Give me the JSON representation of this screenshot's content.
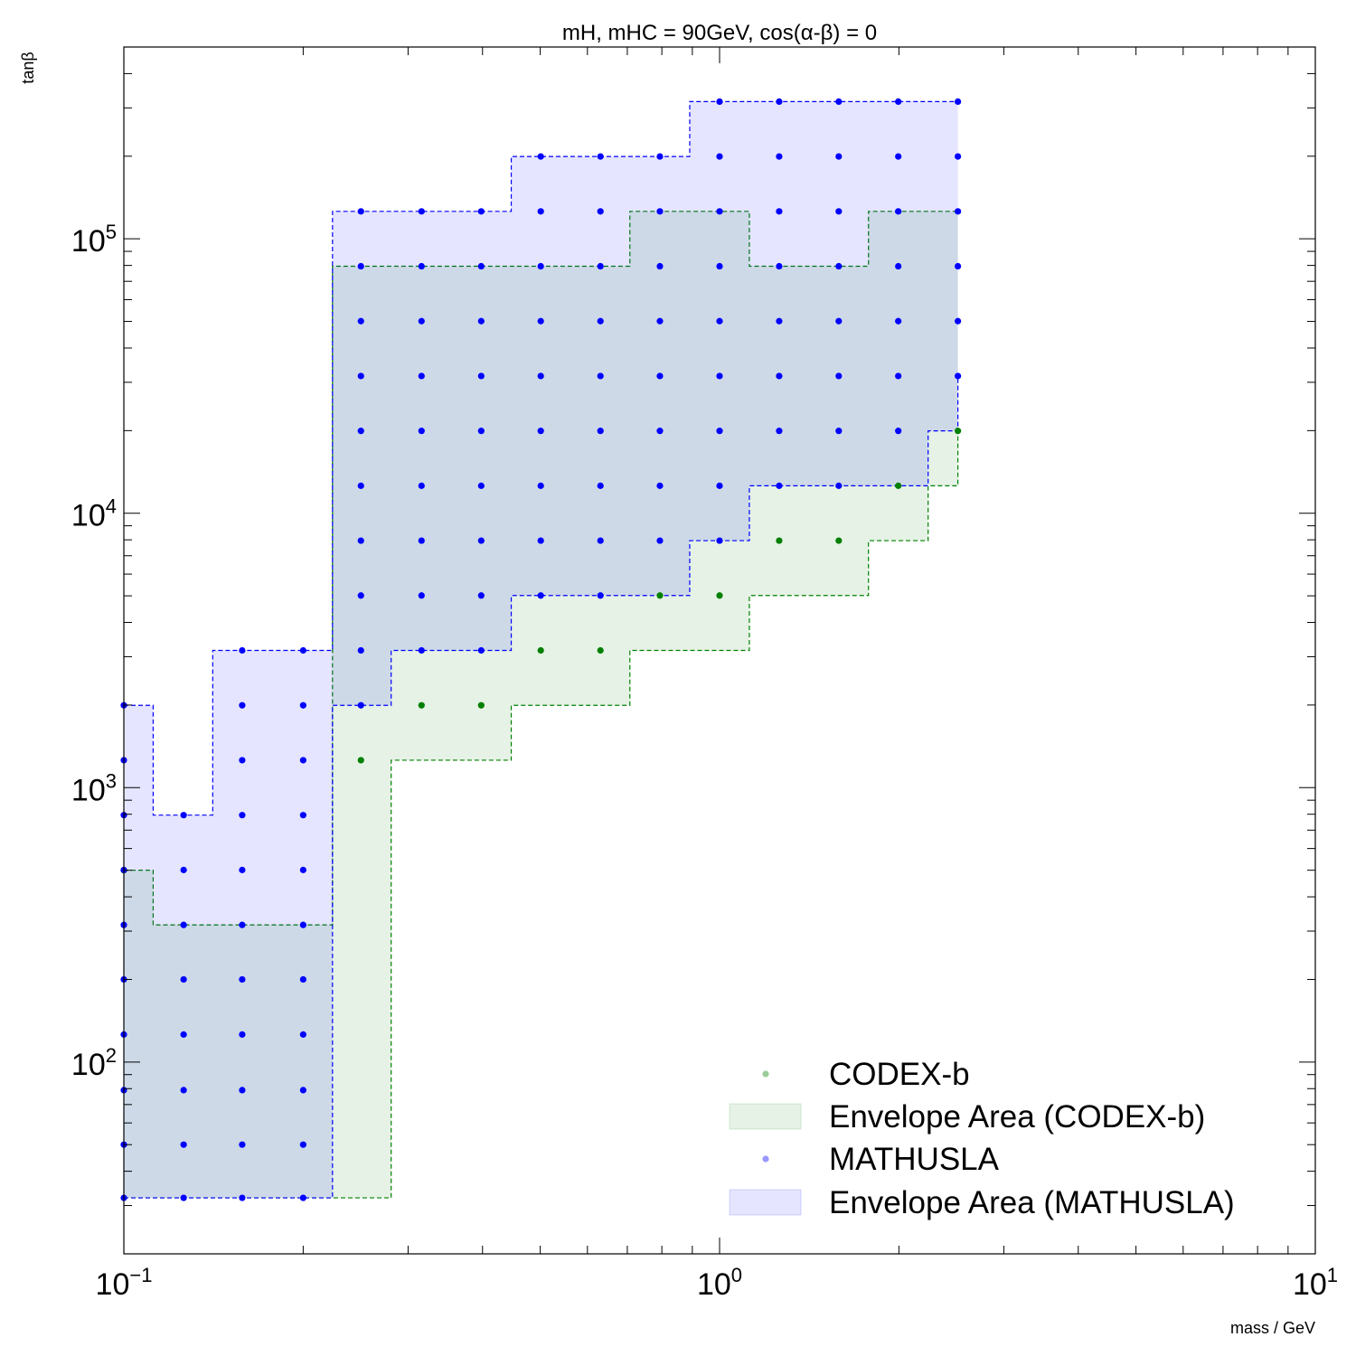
{
  "chart_data": {
    "type": "scatter",
    "title": "mH, mHC = 90GeV, cos(α-β) = 0",
    "xlabel": "mass / GeV",
    "ylabel": "tanβ",
    "x_scale": "log",
    "y_scale": "log",
    "xlim": [
      0.1,
      10
    ],
    "ylim": [
      20,
      500000
    ],
    "x_tick_labels": [
      {
        "value": 0.1,
        "base": "10",
        "exp": "−1"
      },
      {
        "value": 1,
        "base": "10",
        "exp": "0"
      },
      {
        "value": 10,
        "base": "10",
        "exp": "1"
      }
    ],
    "y_tick_labels": [
      {
        "value": 100,
        "base": "10",
        "exp": "2"
      },
      {
        "value": 1000,
        "base": "10",
        "exp": "3"
      },
      {
        "value": 10000,
        "base": "10",
        "exp": "4"
      },
      {
        "value": 100000,
        "base": "10",
        "exp": "5"
      }
    ],
    "legend_position": "lower-right",
    "legend": [
      {
        "label": "CODEX-b",
        "kind": "marker",
        "color": "#008000"
      },
      {
        "label": "Envelope Area (CODEX-b)",
        "kind": "patch",
        "color": "#008000"
      },
      {
        "label": "MATHUSLA",
        "kind": "marker",
        "color": "#0000ff"
      },
      {
        "label": "Envelope Area (MATHUSLA)",
        "kind": "patch",
        "color": "#0000ff"
      }
    ],
    "series": [
      {
        "name": "CODEX-b",
        "color": "#008000",
        "points": [
          [
            0.1,
            500
          ],
          [
            0.25,
            1259
          ],
          [
            0.316,
            1995
          ],
          [
            0.398,
            1995
          ],
          [
            0.501,
            3162
          ],
          [
            0.631,
            3162
          ],
          [
            0.794,
            5012
          ],
          [
            1.0,
            5012
          ],
          [
            1.259,
            7943
          ],
          [
            1.585,
            7943
          ],
          [
            1.995,
            12589
          ],
          [
            2.512,
            19953
          ]
        ],
        "envelope": {
          "x": [
            0.1,
            0.112,
            0.141,
            0.224,
            0.281,
            0.447,
            0.707,
            1.122,
            1.778,
            2.239,
            2.512
          ],
          "lower": [
            32,
            32,
            32,
            32,
            1259,
            1995,
            3162,
            5012,
            7943,
            12589,
            19953
          ],
          "upper": [
            500,
            316,
            316,
            79433,
            79433,
            79433,
            125893,
            79433,
            125893,
            125893,
            125893
          ]
        }
      },
      {
        "name": "MATHUSLA",
        "color": "#0000ff",
        "x": [
          0.1,
          0.126,
          0.158,
          0.2,
          0.25,
          0.316,
          0.398,
          0.501,
          0.631,
          0.794,
          1.0,
          1.259,
          1.585,
          1.995,
          2.512
        ],
        "y_min": [
          32,
          32,
          32,
          32,
          1995,
          3162,
          3162,
          5012,
          5012,
          7943,
          7943,
          12589,
          12589,
          19953,
          31623
        ],
        "y_max": [
          1995,
          794,
          3162,
          3162,
          125893,
          125893,
          125893,
          199526,
          199526,
          199526,
          316228,
          316228,
          316228,
          316228,
          316228
        ],
        "envelope": {
          "x": [
            0.1,
            0.112,
            0.141,
            0.224,
            0.281,
            0.447,
            0.891,
            1.122,
            2.239,
            2.512
          ],
          "lower": [
            32,
            32,
            32,
            1995,
            3162,
            5012,
            7943,
            12589,
            19953,
            31623
          ],
          "upper": [
            1995,
            794,
            3162,
            125893,
            125893,
            199526,
            316228,
            316228,
            316228,
            316228
          ]
        }
      }
    ],
    "grid": false,
    "y_grid_values": [
      32,
      50,
      79,
      126,
      200,
      316,
      501,
      794,
      1259,
      1995,
      3162,
      5012,
      7943,
      12589,
      19953,
      31623,
      50119,
      79433,
      125893,
      199526,
      316228
    ]
  }
}
